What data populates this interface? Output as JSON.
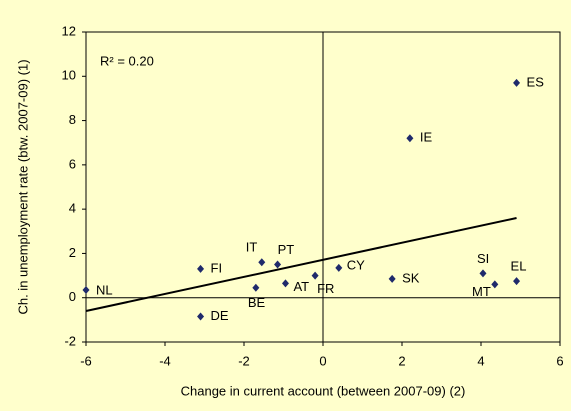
{
  "chart_data": {
    "type": "scatter",
    "annotation": "R² = 0.20",
    "x_label": "Change in current account (between 2007-09) (2)",
    "y_label": "Ch. in unemployment rate (btw. 2007-09) (1)",
    "categories": [
      "ES",
      "IE",
      "NL",
      "FI",
      "IT",
      "PT",
      "BE",
      "AT",
      "FR",
      "CY",
      "DE",
      "SK",
      "SI",
      "MT",
      "EL"
    ],
    "x": [
      4.9,
      2.2,
      -6.0,
      -3.1,
      -1.55,
      -1.15,
      -1.7,
      -0.95,
      -0.2,
      0.4,
      -3.1,
      1.75,
      4.05,
      4.35,
      4.9
    ],
    "values": [
      9.7,
      7.2,
      0.35,
      1.3,
      1.6,
      1.5,
      0.45,
      0.65,
      1.0,
      1.35,
      -0.85,
      0.85,
      1.1,
      0.6,
      0.75
    ],
    "color": "#1f2a6b",
    "trendline": {
      "x": [
        -6,
        4.9
      ],
      "y": [
        -0.6,
        3.6
      ],
      "color": "#000000"
    },
    "xlim": [
      -6,
      6
    ],
    "xticks": [
      -6,
      -4,
      -2,
      0,
      2,
      4,
      6
    ],
    "ylim": [
      -2,
      12
    ],
    "yticks": [
      -2,
      0,
      2,
      4,
      6,
      8,
      10,
      12
    ]
  }
}
